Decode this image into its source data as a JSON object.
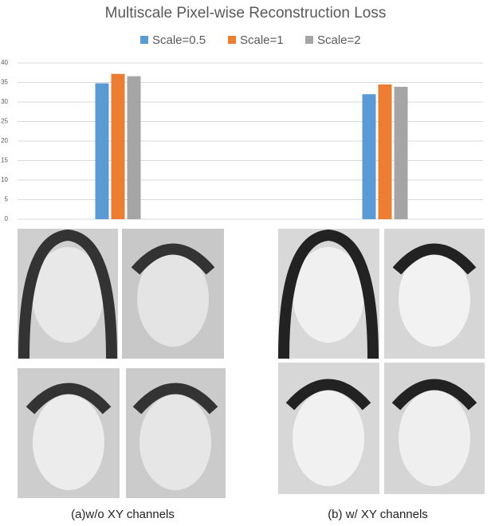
{
  "chart_data": {
    "type": "bar",
    "title": "Multiscale Pixel-wise Reconstruction Loss",
    "categories": [
      null,
      null
    ],
    "series": [
      {
        "name": "Scale=0.5",
        "color": "#5b9bd5",
        "values": [
          34.8,
          32.0
        ]
      },
      {
        "name": "Scale=1",
        "color": "#ed7d31",
        "values": [
          37.2,
          34.5
        ]
      },
      {
        "name": "Scale=2",
        "color": "#a5a5a5",
        "values": [
          36.6,
          33.9
        ]
      }
    ],
    "ylim": [
      0,
      40
    ],
    "yticks": [
      0,
      5,
      10,
      15,
      20,
      25,
      30,
      35,
      40
    ],
    "grid": true,
    "legend": "top"
  },
  "captions": [
    "(a)w/o XY channels",
    "(b) w/ XY channels"
  ]
}
